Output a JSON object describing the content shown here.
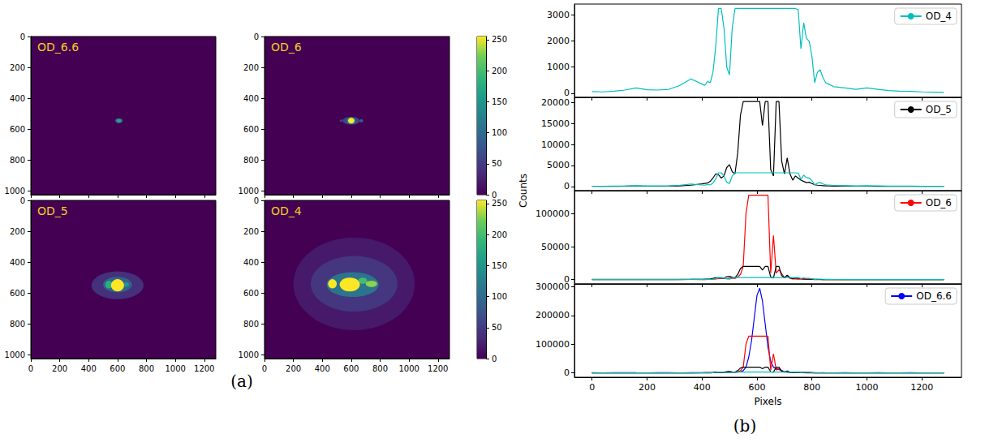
{
  "chart_data": [
    {
      "type": "image",
      "title": "OD_6.6",
      "xlim": [
        0,
        1280
      ],
      "ylim": [
        1024,
        0
      ],
      "xticks": [
        0,
        200,
        400,
        600,
        800,
        1000,
        1200
      ],
      "yticks": [
        0,
        200,
        400,
        600,
        800,
        1000
      ],
      "clim": [
        0,
        255
      ],
      "tick_labels": "y",
      "spots": [
        {
          "x": 610,
          "y": 545,
          "rx": 25,
          "ry": 16,
          "value": 110
        },
        {
          "x": 610,
          "y": 545,
          "rx": 14,
          "ry": 9,
          "value": 170
        }
      ]
    },
    {
      "type": "image",
      "title": "OD_6",
      "xlim": [
        0,
        1280
      ],
      "ylim": [
        1024,
        0
      ],
      "xticks": [
        0,
        200,
        400,
        600,
        800,
        1000,
        1200
      ],
      "yticks": [
        0,
        200,
        400,
        600,
        800,
        1000
      ],
      "clim": [
        0,
        255
      ],
      "cticks": [
        0,
        50,
        100,
        150,
        200,
        250
      ],
      "tick_labels": "y",
      "spots": [
        {
          "x": 600,
          "y": 545,
          "rx": 60,
          "ry": 25,
          "value": 60
        },
        {
          "x": 530,
          "y": 545,
          "rx": 10,
          "ry": 8,
          "value": 60
        },
        {
          "x": 670,
          "y": 545,
          "rx": 12,
          "ry": 10,
          "value": 90
        },
        {
          "x": 600,
          "y": 545,
          "rx": 30,
          "ry": 22,
          "value": 130
        },
        {
          "x": 600,
          "y": 545,
          "rx": 22,
          "ry": 18,
          "value": 255
        }
      ]
    },
    {
      "type": "image",
      "title": "OD_5",
      "xlim": [
        0,
        1280
      ],
      "ylim": [
        1024,
        0
      ],
      "xticks": [
        0,
        200,
        400,
        600,
        800,
        1000,
        1200
      ],
      "yticks": [
        0,
        200,
        400,
        600,
        800,
        1000
      ],
      "clim": [
        0,
        255
      ],
      "spots": [
        {
          "x": 600,
          "y": 550,
          "rx": 180,
          "ry": 90,
          "value": 40
        },
        {
          "x": 600,
          "y": 545,
          "rx": 100,
          "ry": 50,
          "value": 90
        },
        {
          "x": 540,
          "y": 545,
          "rx": 25,
          "ry": 25,
          "value": 180
        },
        {
          "x": 660,
          "y": 545,
          "rx": 20,
          "ry": 15,
          "value": 150
        },
        {
          "x": 600,
          "y": 550,
          "rx": 45,
          "ry": 40,
          "value": 255
        }
      ]
    },
    {
      "type": "image",
      "title": "OD_4",
      "xlim": [
        0,
        1280
      ],
      "ylim": [
        1024,
        0
      ],
      "xticks": [
        0,
        200,
        400,
        600,
        800,
        1000,
        1200
      ],
      "yticks": [
        0,
        200,
        400,
        600,
        800,
        1000
      ],
      "clim": [
        0,
        255
      ],
      "cticks": [
        0,
        50,
        100,
        150,
        200,
        250
      ],
      "spots": [
        {
          "x": 620,
          "y": 540,
          "rx": 420,
          "ry": 300,
          "value": 20
        },
        {
          "x": 620,
          "y": 540,
          "rx": 300,
          "ry": 180,
          "value": 45
        },
        {
          "x": 610,
          "y": 545,
          "rx": 180,
          "ry": 80,
          "value": 110
        },
        {
          "x": 680,
          "y": 520,
          "rx": 30,
          "ry": 20,
          "value": 200
        },
        {
          "x": 740,
          "y": 540,
          "rx": 40,
          "ry": 20,
          "value": 230
        },
        {
          "x": 470,
          "y": 540,
          "rx": 30,
          "ry": 30,
          "value": 255
        },
        {
          "x": 590,
          "y": 545,
          "rx": 70,
          "ry": 45,
          "value": 255
        }
      ]
    },
    {
      "type": "line",
      "xlabel": "Pixels",
      "ylabel": "Counts",
      "grid": false,
      "legend": "upper right",
      "xlim": [
        -64,
        1344
      ],
      "xticks": [
        0,
        200,
        400,
        600,
        800,
        1000,
        1200
      ],
      "x": [
        0,
        40,
        80,
        120,
        160,
        200,
        240,
        280,
        320,
        360,
        400,
        410,
        420,
        430,
        440,
        450,
        460,
        470,
        480,
        490,
        500,
        510,
        520,
        530,
        540,
        550,
        560,
        570,
        580,
        590,
        600,
        610,
        620,
        630,
        640,
        650,
        660,
        670,
        680,
        690,
        700,
        710,
        720,
        730,
        740,
        750,
        760,
        770,
        780,
        790,
        800,
        810,
        820,
        830,
        840,
        850,
        860,
        880,
        920,
        960,
        1000,
        1040,
        1080,
        1120,
        1160,
        1200,
        1240,
        1280
      ],
      "series": [
        {
          "name": "OD_4",
          "color": "#00bfbf",
          "values": [
            60,
            50,
            80,
            120,
            200,
            130,
            120,
            150,
            300,
            550,
            350,
            300,
            450,
            400,
            800,
            1800,
            3250,
            3250,
            2500,
            1000,
            700,
            2500,
            3250,
            3250,
            3250,
            3250,
            3250,
            3250,
            3250,
            3250,
            3250,
            3250,
            3250,
            3250,
            3250,
            3250,
            3250,
            3250,
            3250,
            3250,
            3250,
            3250,
            3250,
            3250,
            3250,
            3200,
            1700,
            2700,
            2100,
            2000,
            1400,
            400,
            800,
            900,
            600,
            400,
            350,
            250,
            200,
            150,
            200,
            150,
            100,
            80,
            70,
            50,
            40,
            30
          ]
        },
        {
          "name": "OD_5",
          "color": "#000000",
          "values": [
            30,
            30,
            40,
            60,
            80,
            60,
            60,
            80,
            150,
            300,
            600,
            700,
            800,
            1200,
            2000,
            3000,
            2800,
            2000,
            2500,
            4500,
            5200,
            3500,
            3000,
            8000,
            17000,
            20200,
            20200,
            20200,
            20200,
            20200,
            20200,
            20200,
            14500,
            20200,
            20200,
            4000,
            2500,
            20200,
            20200,
            6000,
            3000,
            6800,
            3000,
            1500,
            2500,
            2000,
            1500,
            1200,
            900,
            1000,
            700,
            400,
            300,
            250,
            200,
            150,
            120,
            100,
            80,
            60,
            60,
            50,
            40,
            40,
            30,
            30,
            30,
            30
          ]
        },
        {
          "name": "OD_6",
          "color": "#ff0000",
          "values": [
            400,
            300,
            300,
            400,
            300,
            300,
            400,
            300,
            300,
            300,
            200,
            200,
            300,
            400,
            600,
            1000,
            1500,
            3000,
            1500,
            1500,
            2500,
            2000,
            2000,
            4000,
            8000,
            20000,
            100000,
            128000,
            128000,
            128000,
            128000,
            128000,
            128000,
            128000,
            128000,
            10000,
            67000,
            10000,
            15000,
            9000,
            3000,
            6000,
            2000,
            1000,
            1000,
            800,
            600,
            500,
            400,
            400,
            300,
            200,
            200,
            200,
            150,
            150,
            150,
            200,
            150,
            150,
            200,
            150,
            150,
            150,
            200,
            150,
            150,
            150
          ]
        },
        {
          "name": "OD_6.6",
          "color": "#0000ff",
          "values": [
            800,
            600,
            800,
            1000,
            700,
            600,
            800,
            700,
            600,
            800,
            800,
            700,
            900,
            800,
            1000,
            1200,
            1500,
            2000,
            1500,
            1500,
            2000,
            2000,
            2500,
            3000,
            4000,
            8000,
            20000,
            55000,
            110000,
            190000,
            270000,
            295000,
            250000,
            170000,
            90000,
            40000,
            20000,
            15000,
            12000,
            8000,
            4000,
            2500,
            1500,
            1200,
            1000,
            900,
            800,
            800,
            700,
            700,
            600,
            700,
            600,
            600,
            700,
            600,
            600,
            600,
            700,
            600,
            600,
            700,
            600,
            600,
            700,
            600,
            600,
            600
          ]
        }
      ],
      "panels": [
        {
          "series": [
            "OD_4"
          ],
          "ylim": [
            -160,
            3420
          ],
          "yticks": [
            0,
            1000,
            2000,
            3000
          ]
        },
        {
          "series": [
            "OD_5",
            "OD_4"
          ],
          "ylim": [
            -1000,
            21200
          ],
          "yticks": [
            0,
            5000,
            10000,
            15000,
            20000
          ]
        },
        {
          "series": [
            "OD_6",
            "OD_5",
            "OD_4"
          ],
          "ylim": [
            -6500,
            135000
          ],
          "yticks": [
            0,
            50000,
            100000
          ]
        },
        {
          "series": [
            "OD_6.6",
            "OD_6",
            "OD_5",
            "OD_4"
          ],
          "ylim": [
            -15000,
            310000
          ],
          "yticks": [
            0,
            100000,
            200000,
            300000
          ]
        }
      ]
    }
  ],
  "figure_labels": [
    "(a)",
    "(b)"
  ]
}
